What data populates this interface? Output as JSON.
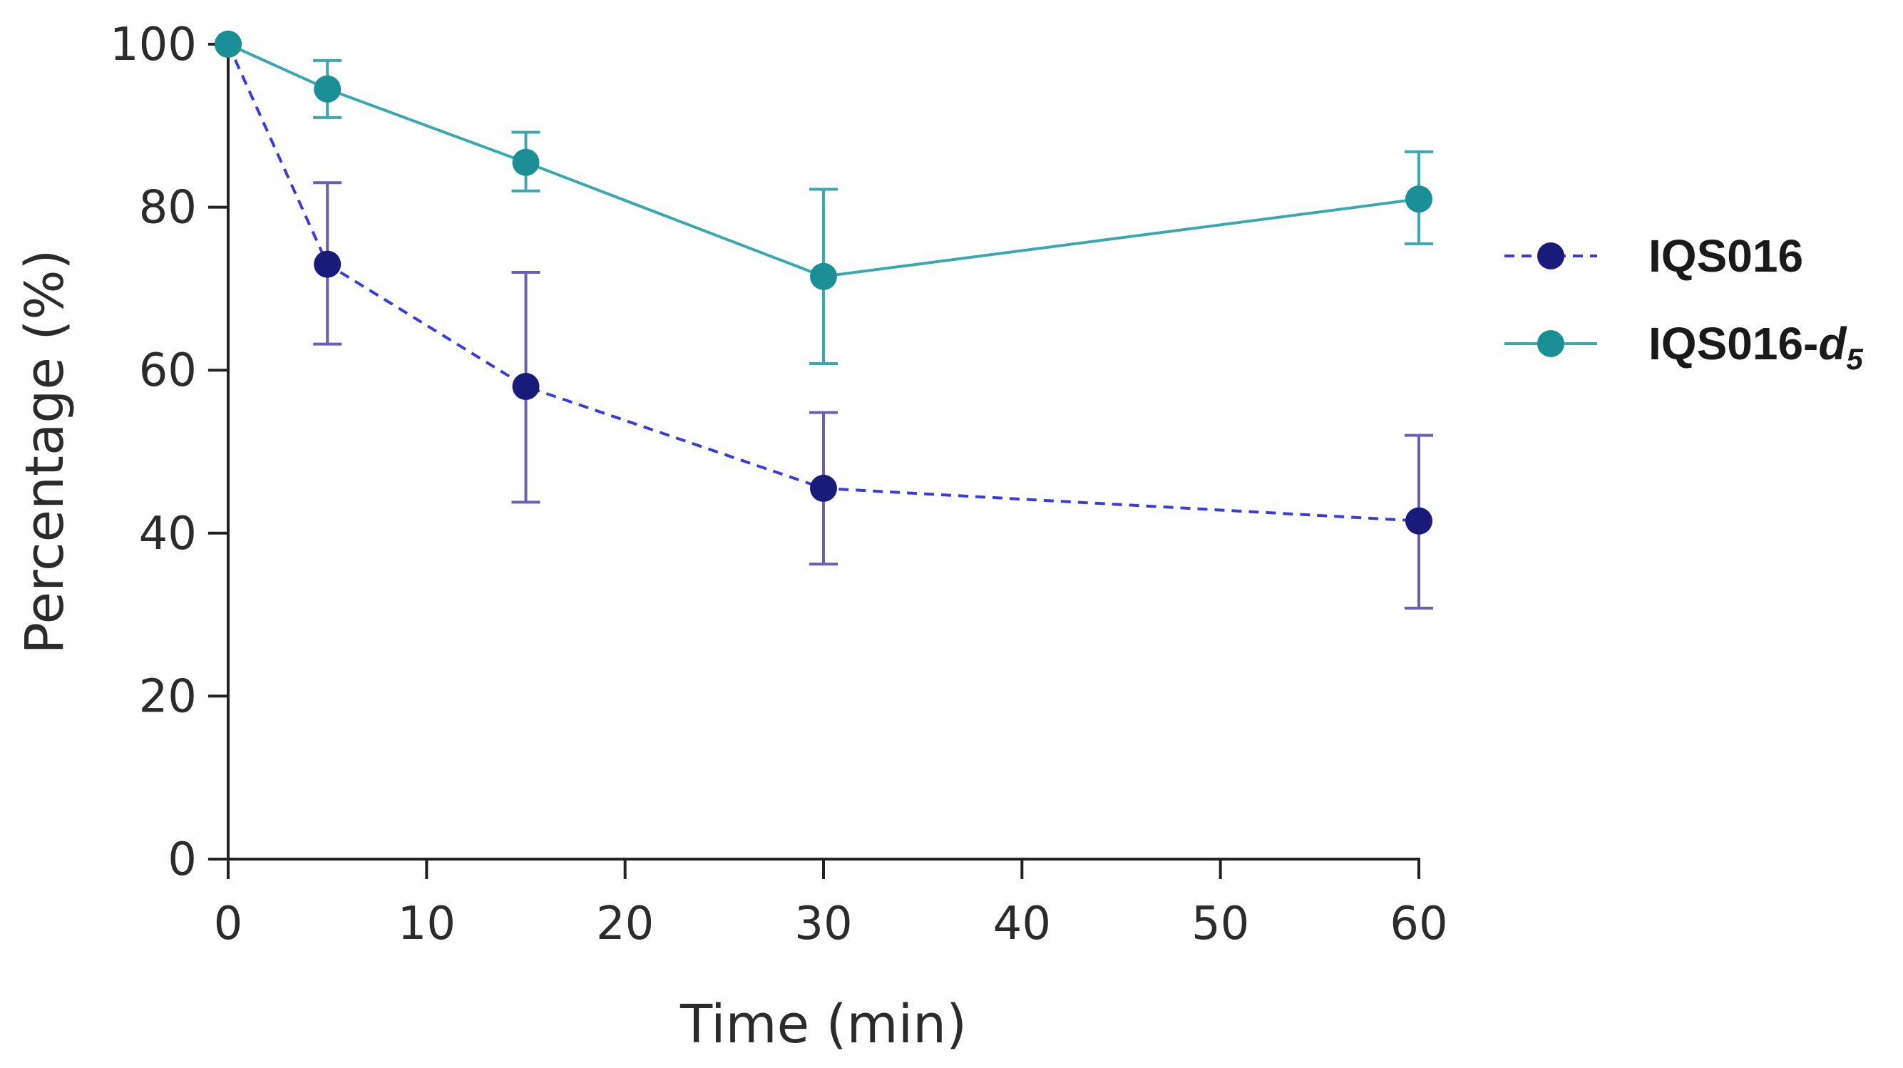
{
  "chart_data": {
    "type": "line",
    "title": "",
    "xlabel": "Time (min)",
    "ylabel": "Percentage (%)",
    "xlim": [
      0,
      60
    ],
    "ylim": [
      0,
      100
    ],
    "x_ticks": [
      0,
      10,
      20,
      30,
      40,
      50,
      60
    ],
    "y_ticks": [
      0,
      20,
      40,
      60,
      80,
      100
    ],
    "x": [
      0,
      5,
      15,
      30,
      60
    ],
    "x_scale": "piecewise-categorical (0, 5, 15, 30, 60 mapped to ticks 0, 5, 15, 30, 60 visual spacing)",
    "grid": false,
    "legend_position": "right",
    "series": [
      {
        "name": "IQS016",
        "name_base": "IQS016",
        "name_italic": "",
        "name_subscript": "",
        "color": "#1a1a7a",
        "line_color": "#3a3ae0",
        "error_color": "#6a5fb5",
        "line_style": "dashed",
        "values": [
          100,
          73,
          58,
          45.5,
          41.5
        ],
        "error_upper": [
          100,
          83,
          72,
          54.8,
          52
        ],
        "error_lower": [
          100,
          63.2,
          43.8,
          36.2,
          30.8
        ]
      },
      {
        "name": "IQS016-d5",
        "name_base": "IQS016-",
        "name_italic": "d",
        "name_subscript": "5",
        "color": "#1a9096",
        "line_color": "#3aa8b0",
        "error_color": "#3aa8b0",
        "line_style": "solid",
        "values": [
          100,
          94.5,
          85.5,
          71.5,
          81
        ],
        "error_upper": [
          100,
          98,
          89.2,
          82.2,
          86.8
        ],
        "error_lower": [
          100,
          91,
          82,
          60.8,
          75.5
        ]
      }
    ]
  }
}
